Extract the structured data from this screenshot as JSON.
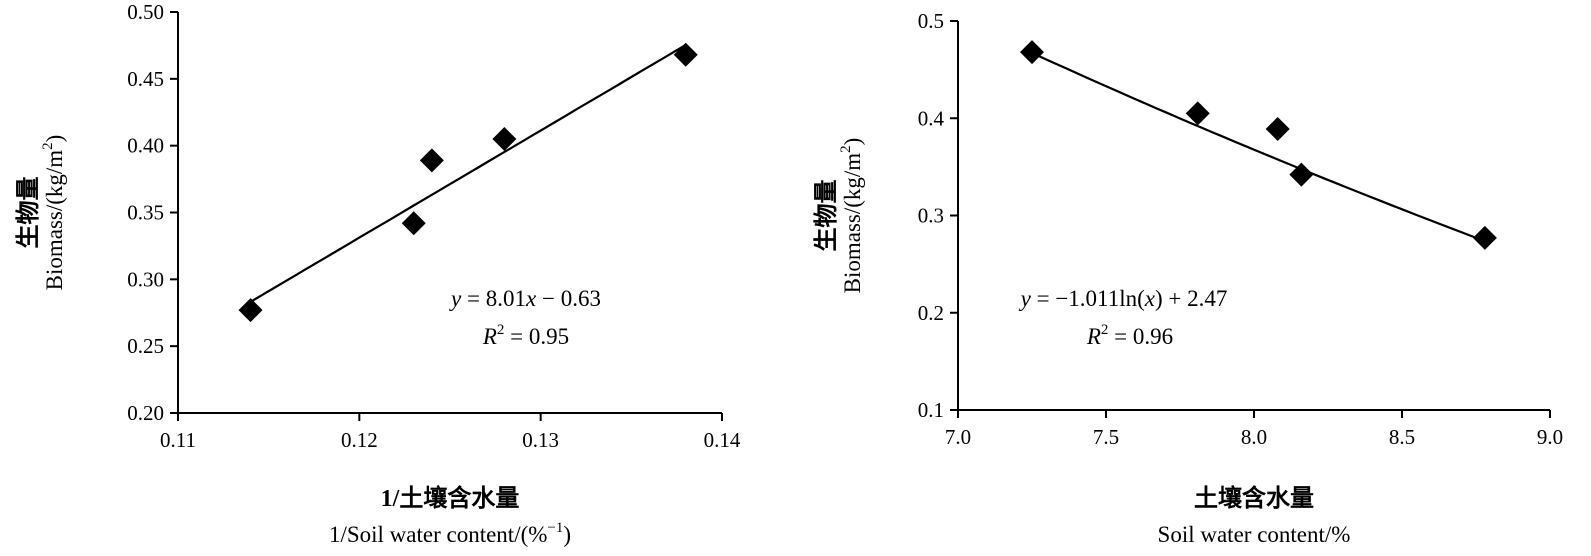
{
  "chart_data": [
    {
      "type": "scatter",
      "xlabel_cn": "1/土壤含水量",
      "xlabel_en": "1/Soil water content/(%",
      "xlabel_en_sup": "−1",
      "xlabel_en_tail": ")",
      "ylabel_cn": "生物量",
      "ylabel_en": "Biomass/(kg/m",
      "ylabel_en_sup": "2",
      "ylabel_en_tail": ")",
      "xlim": [
        0.11,
        0.14
      ],
      "ylim": [
        0.2,
        0.5
      ],
      "x_ticks": [
        "0.11",
        "0.12",
        "0.13",
        "0.14"
      ],
      "y_ticks": [
        "0.20",
        "0.25",
        "0.30",
        "0.35",
        "0.40",
        "0.45",
        "0.50"
      ],
      "points": [
        {
          "x": 0.114,
          "y": 0.277
        },
        {
          "x": 0.123,
          "y": 0.342
        },
        {
          "x": 0.124,
          "y": 0.389
        },
        {
          "x": 0.128,
          "y": 0.405
        },
        {
          "x": 0.138,
          "y": 0.468
        }
      ],
      "trendline": {
        "type": "linear",
        "slope": 8.01,
        "intercept": -0.63,
        "x_range": [
          0.114,
          0.138
        ]
      },
      "equation": {
        "y": "y",
        "eq": " = 8.01",
        "x": "x",
        "rest": " −  0.63"
      },
      "r2": {
        "R": "R",
        "sup": "2",
        "rest": " = 0.95"
      }
    },
    {
      "type": "scatter",
      "xlabel_cn": "土壤含水量",
      "xlabel_en": "Soil water content/%",
      "ylabel_cn": "生物量",
      "ylabel_en": "Biomass/(kg/m",
      "ylabel_en_sup": "2",
      "ylabel_en_tail": ")",
      "xlim": [
        7.0,
        9.0
      ],
      "ylim": [
        0.1,
        0.5
      ],
      "x_ticks": [
        "7.0",
        "7.5",
        "8.0",
        "8.5",
        "9.0"
      ],
      "y_ticks": [
        "0.1",
        "0.2",
        "0.3",
        "0.4",
        "0.5"
      ],
      "points": [
        {
          "x": 7.25,
          "y": 0.468
        },
        {
          "x": 7.81,
          "y": 0.405
        },
        {
          "x": 8.08,
          "y": 0.389
        },
        {
          "x": 8.16,
          "y": 0.342
        },
        {
          "x": 8.78,
          "y": 0.277
        }
      ],
      "trendline": {
        "type": "log",
        "a": -1.011,
        "b": 2.47,
        "x_range": [
          7.25,
          8.78
        ]
      },
      "equation": {
        "y": "y",
        "eq": " = −1.011ln(",
        "x": "x",
        "rest": ") + 2.47"
      },
      "r2": {
        "R": "R",
        "sup": "2",
        "rest": " = 0.96"
      }
    }
  ]
}
